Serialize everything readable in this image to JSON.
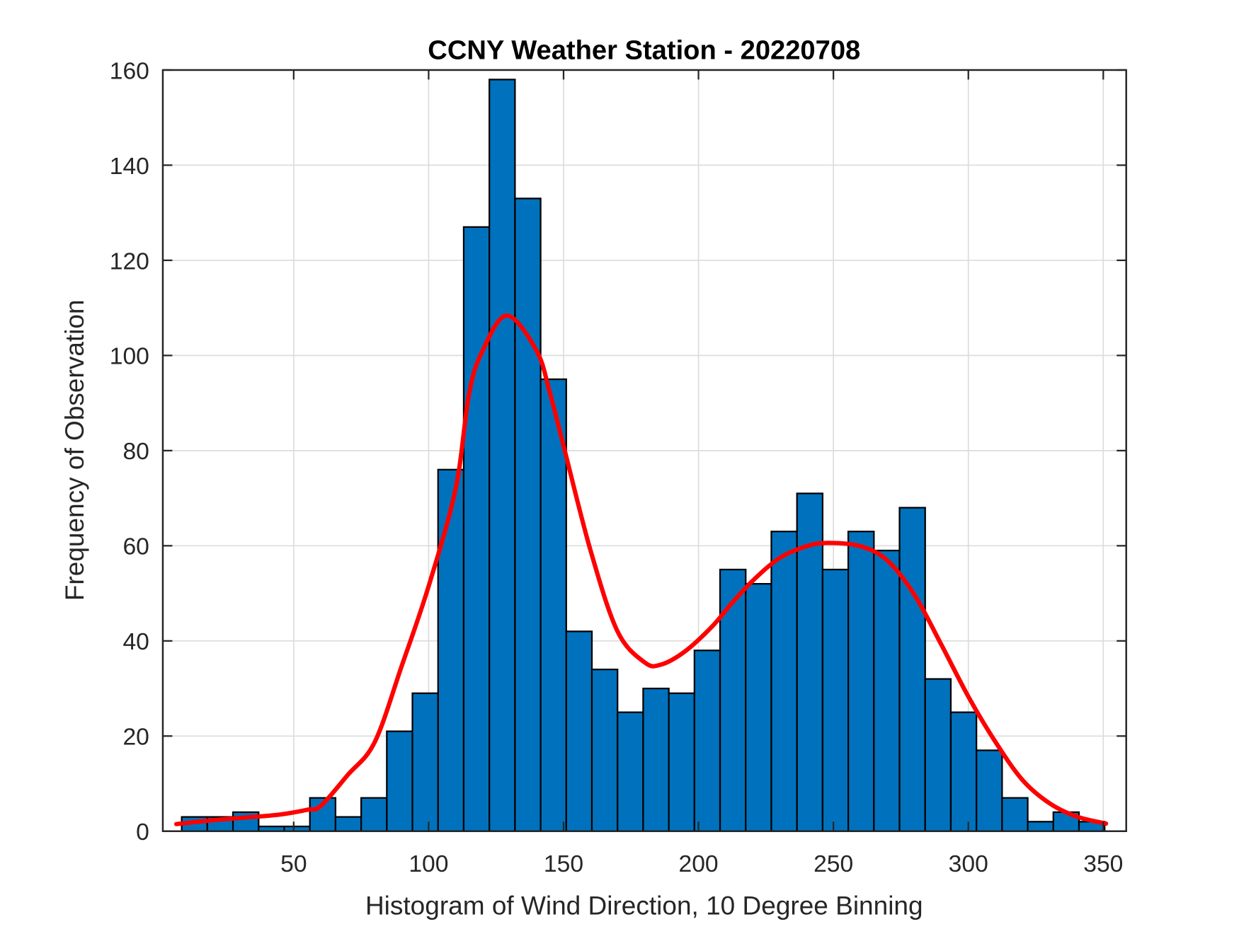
{
  "chart_data": {
    "type": "bar",
    "title": "CCNY Weather Station - 20220708",
    "xlabel": "Histogram of Wind Direction, 10 Degree Binning",
    "ylabel": "Frequency of Observation",
    "xlim": [
      1.5,
      358.5
    ],
    "ylim": [
      0,
      160
    ],
    "xticks": [
      50,
      100,
      150,
      200,
      250,
      300,
      350
    ],
    "yticks": [
      0,
      20,
      40,
      60,
      80,
      100,
      120,
      140,
      160
    ],
    "grid": true,
    "bin_edges_start": 8.5,
    "bin_width": 9.5,
    "values": [
      3,
      3,
      4,
      1,
      1,
      7,
      3,
      7,
      21,
      29,
      76,
      127,
      158,
      133,
      95,
      42,
      34,
      25,
      30,
      29,
      38,
      55,
      52,
      63,
      71,
      55,
      63,
      59,
      68,
      32,
      25,
      17,
      7,
      2,
      4,
      2
    ],
    "fit_curve": {
      "x": [
        6.5,
        20,
        35,
        45,
        55,
        60,
        70,
        80,
        90,
        100,
        110,
        115,
        120,
        129,
        140,
        145,
        150,
        160,
        170,
        180,
        186,
        195,
        205,
        212,
        220,
        230,
        240,
        248,
        260,
        270,
        280,
        290,
        300,
        310,
        320,
        330,
        340,
        351
      ],
      "y": [
        1.5,
        2.3,
        3.0,
        3.5,
        4.5,
        5.3,
        11.8,
        18.7,
        34.7,
        51.5,
        72,
        92,
        101,
        108.4,
        101,
        92,
        81,
        59,
        42,
        35.5,
        35,
        37.8,
        43,
        47.7,
        52.6,
        57.4,
        59.9,
        60.6,
        59.9,
        56.9,
        49.7,
        39.2,
        28.3,
        18.8,
        10.8,
        5.9,
        3.1,
        1.6
      ]
    },
    "colors": {
      "bar": "#0072BD",
      "bar_edge": "#000000",
      "fit": "#FF0000",
      "grid": "#DCDCDC"
    }
  }
}
